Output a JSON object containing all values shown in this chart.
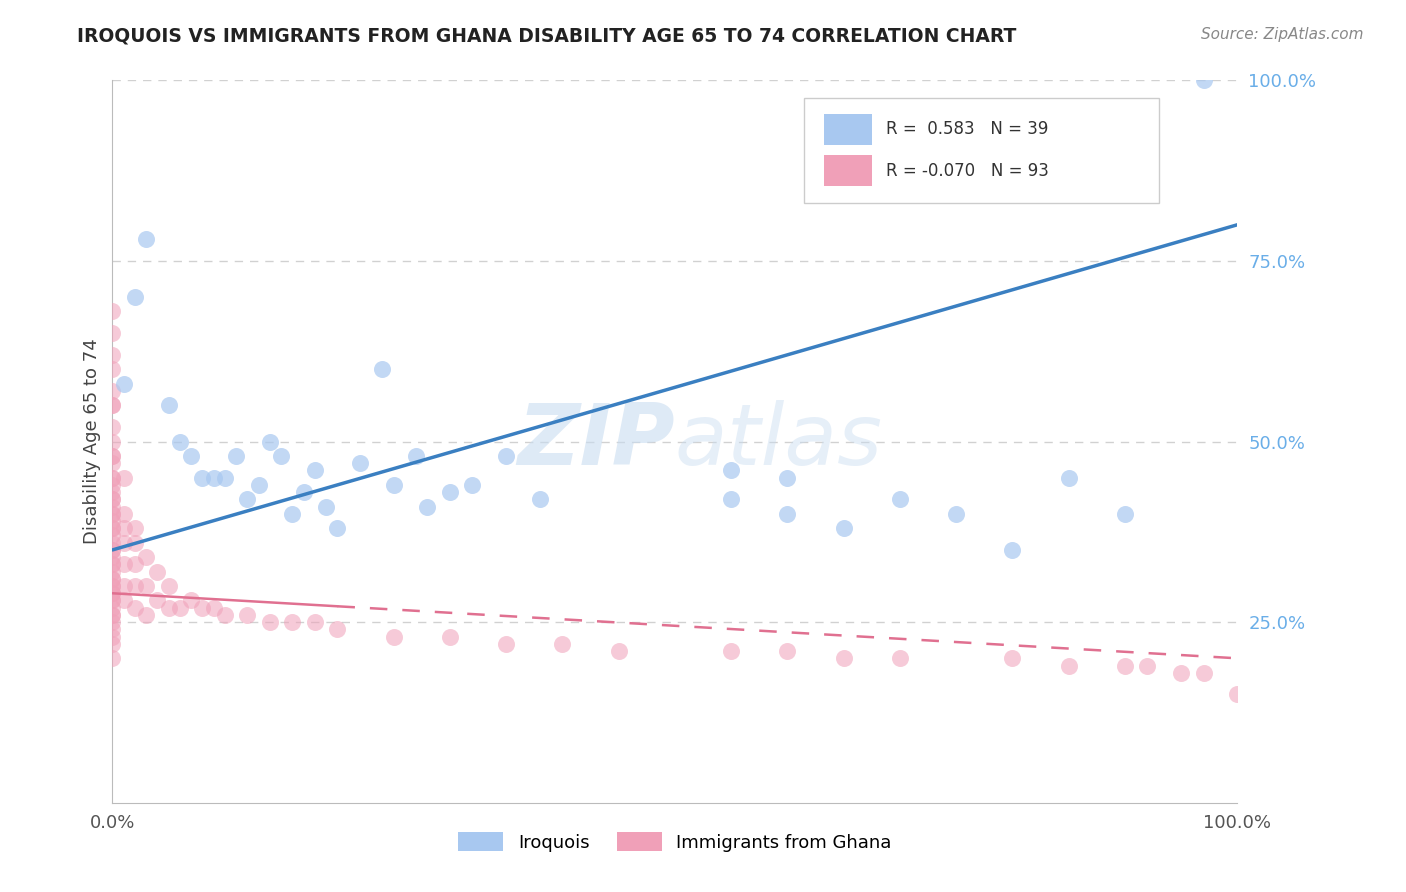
{
  "title": "IROQUOIS VS IMMIGRANTS FROM GHANA DISABILITY AGE 65 TO 74 CORRELATION CHART",
  "source_text": "Source: ZipAtlas.com",
  "ylabel": "Disability Age 65 to 74",
  "watermark": "ZIPatlas",
  "legend_label_1": "Iroquois",
  "legend_label_2": "Immigrants from Ghana",
  "r1": 0.583,
  "n1": 39,
  "r2": -0.07,
  "n2": 93,
  "color_blue": "#A8C8F0",
  "color_pink": "#F0A0B8",
  "line_color_blue": "#3A7FC1",
  "line_color_pink": "#E07090",
  "right_tick_color": "#6aaee8",
  "xlim": [
    0,
    100
  ],
  "ylim": [
    0,
    100
  ],
  "blue_line_x0": 0,
  "blue_line_y0": 35,
  "blue_line_x1": 100,
  "blue_line_y1": 80,
  "pink_line_x0": 0,
  "pink_line_y0": 29,
  "pink_line_x1": 100,
  "pink_line_y1": 20,
  "iroquois_x": [
    1,
    2,
    3,
    5,
    6,
    7,
    8,
    9,
    10,
    11,
    12,
    13,
    14,
    15,
    16,
    17,
    18,
    19,
    20,
    22,
    24,
    25,
    27,
    28,
    30,
    32,
    35,
    38,
    55,
    60,
    65,
    70,
    75,
    80,
    85,
    55,
    60,
    90,
    97
  ],
  "iroquois_y": [
    58,
    70,
    78,
    55,
    50,
    48,
    45,
    45,
    45,
    48,
    42,
    44,
    50,
    48,
    40,
    43,
    46,
    41,
    38,
    47,
    60,
    44,
    48,
    41,
    43,
    44,
    48,
    42,
    42,
    45,
    38,
    42,
    40,
    35,
    45,
    46,
    40,
    40,
    100
  ],
  "ghana_x": [
    0,
    0,
    0,
    0,
    0,
    0,
    0,
    0,
    0,
    0,
    0,
    0,
    0,
    0,
    0,
    0,
    0,
    0,
    0,
    0,
    0,
    0,
    0,
    0,
    0,
    0,
    0,
    0,
    0,
    0,
    0,
    0,
    0,
    0,
    0,
    0,
    0,
    0,
    0,
    0,
    0,
    0,
    0,
    0,
    0,
    0,
    0,
    0,
    1,
    1,
    1,
    1,
    1,
    1,
    1,
    2,
    2,
    2,
    2,
    2,
    3,
    3,
    3,
    4,
    4,
    5,
    5,
    6,
    7,
    8,
    9,
    10,
    12,
    14,
    16,
    18,
    20,
    25,
    30,
    35,
    40,
    45,
    55,
    60,
    65,
    70,
    80,
    85,
    90,
    92,
    95,
    97,
    100
  ],
  "ghana_y": [
    25,
    26,
    27,
    28,
    29,
    30,
    31,
    32,
    33,
    34,
    35,
    36,
    37,
    38,
    39,
    40,
    41,
    42,
    43,
    44,
    45,
    48,
    50,
    55,
    20,
    22,
    23,
    24,
    26,
    28,
    29,
    30,
    31,
    33,
    35,
    38,
    40,
    42,
    45,
    47,
    48,
    52,
    55,
    57,
    60,
    62,
    65,
    68,
    28,
    30,
    33,
    36,
    38,
    40,
    45,
    27,
    30,
    33,
    36,
    38,
    26,
    30,
    34,
    28,
    32,
    27,
    30,
    27,
    28,
    27,
    27,
    26,
    26,
    25,
    25,
    25,
    24,
    23,
    23,
    22,
    22,
    21,
    21,
    21,
    20,
    20,
    20,
    19,
    19,
    19,
    18,
    18,
    15
  ]
}
